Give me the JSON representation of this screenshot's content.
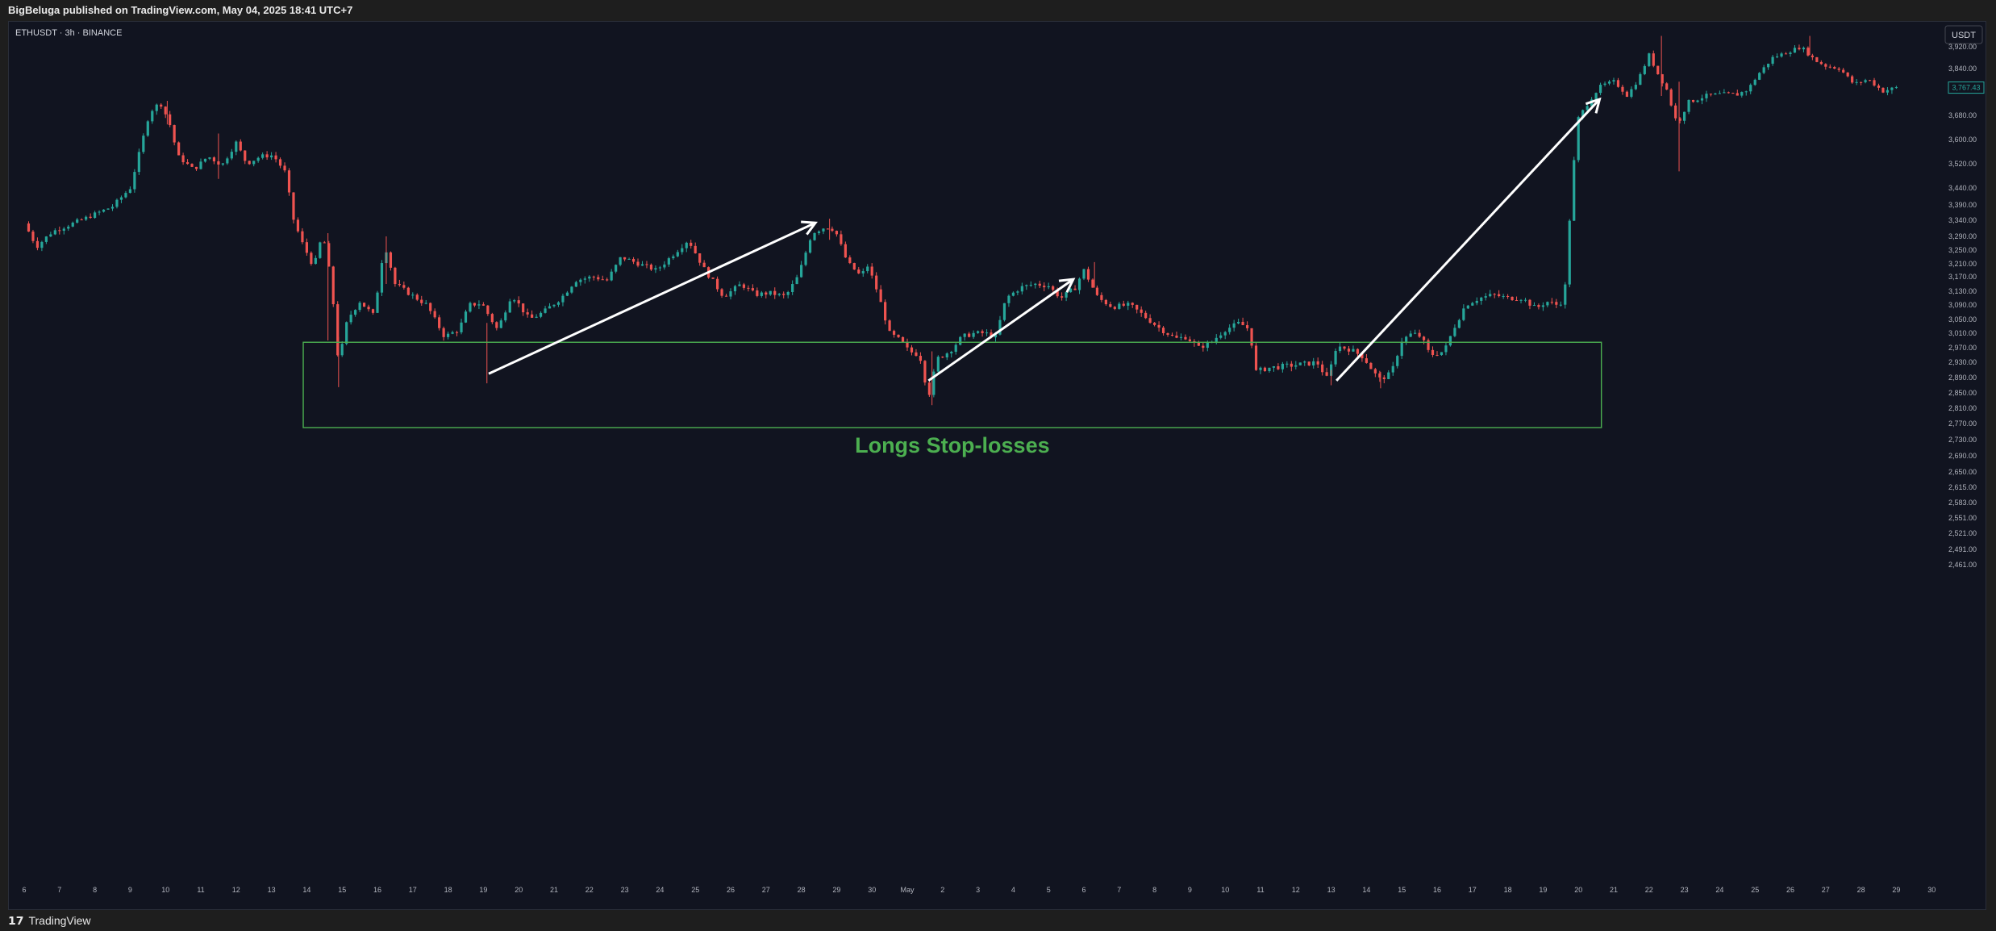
{
  "header": {
    "published_text": "BigBeluga published on TradingView.com, May 04, 2025 18:41 UTC+7"
  },
  "footer": {
    "logo_glyph": "𝟭𝟳",
    "brand": "TradingView"
  },
  "chart_data": {
    "type": "candlestick",
    "symbol_text": "ETHUSDT · 3h · BINANCE",
    "currency_badge": "USDT",
    "last_price": "3,767.43",
    "price_axis": [
      "3,920.00",
      "3,840.00",
      "3,760.00",
      "3,680.00",
      "3,600.00",
      "3,520.00",
      "3,440.00",
      "3,390.00",
      "3,340.00",
      "3,290.00",
      "3,250.00",
      "3,210.00",
      "3,170.00",
      "3,130.00",
      "3,090.00",
      "3,050.00",
      "3,010.00",
      "2,970.00",
      "2,930.00",
      "2,890.00",
      "2,850.00",
      "2,810.00",
      "2,770.00",
      "2,730.00",
      "2,690.00",
      "2,650.00",
      "2,615.00",
      "2,583.00",
      "2,551.00",
      "2,521.00",
      "2,491.00",
      "2,461.00"
    ],
    "time_axis": [
      "6",
      "7",
      "8",
      "9",
      "10",
      "11",
      "12",
      "13",
      "14",
      "15",
      "16",
      "17",
      "18",
      "19",
      "20",
      "21",
      "22",
      "23",
      "24",
      "25",
      "26",
      "27",
      "28",
      "29",
      "30",
      "May",
      "2",
      "3",
      "4",
      "5",
      "6",
      "7",
      "8",
      "9",
      "10",
      "11",
      "12",
      "13",
      "14",
      "15",
      "16",
      "17",
      "18",
      "19",
      "20",
      "21",
      "22",
      "23",
      "24",
      "25",
      "26",
      "27",
      "28",
      "29",
      "30"
    ],
    "annotation": "Longs Stop-losses",
    "zone": {
      "price_top": 2985,
      "price_bottom": 2760,
      "day_start": 7.9,
      "day_end": 44.65
    },
    "arrows": [
      {
        "from": [
          13.15,
          2900
        ],
        "to": [
          22.4,
          3332
        ]
      },
      {
        "from": [
          25.6,
          2882
        ],
        "to": [
          29.7,
          3163
        ]
      },
      {
        "from": [
          37.15,
          2882
        ],
        "to": [
          44.6,
          3730
        ]
      }
    ],
    "colors": {
      "up": "#26a69a",
      "down": "#ef5350",
      "zone": "#4caf50",
      "arrow": "#ffffff",
      "annotation": "#4caf50"
    },
    "keypoints": [
      [
        0,
        3330
      ],
      [
        0.35,
        3260
      ],
      [
        0.8,
        3305
      ],
      [
        1.6,
        3340
      ],
      [
        2.5,
        3385
      ],
      [
        3.0,
        3440
      ],
      [
        3.3,
        3575
      ],
      [
        3.55,
        3690
      ],
      [
        3.85,
        3720
      ],
      [
        4.1,
        3660
      ],
      [
        4.35,
        3545
      ],
      [
        4.8,
        3500
      ],
      [
        5.2,
        3545
      ],
      [
        5.6,
        3515
      ],
      [
        6.0,
        3590
      ],
      [
        6.3,
        3520
      ],
      [
        6.7,
        3545
      ],
      [
        7.05,
        3548
      ],
      [
        7.4,
        3490
      ],
      [
        7.6,
        3350
      ],
      [
        7.85,
        3275
      ],
      [
        8.2,
        3200
      ],
      [
        8.45,
        3300
      ],
      [
        8.7,
        3150
      ],
      [
        8.9,
        2925
      ],
      [
        9.15,
        3050
      ],
      [
        9.5,
        3100
      ],
      [
        9.9,
        3060
      ],
      [
        10.2,
        3270
      ],
      [
        10.5,
        3150
      ],
      [
        10.95,
        3120
      ],
      [
        11.4,
        3090
      ],
      [
        11.9,
        3000
      ],
      [
        12.3,
        3020
      ],
      [
        12.6,
        3090
      ],
      [
        12.95,
        3095
      ],
      [
        13.4,
        3020
      ],
      [
        13.8,
        3120
      ],
      [
        14.3,
        3050
      ],
      [
        14.7,
        3070
      ],
      [
        15.2,
        3110
      ],
      [
        15.6,
        3160
      ],
      [
        16.1,
        3170
      ],
      [
        16.5,
        3160
      ],
      [
        16.9,
        3230
      ],
      [
        17.4,
        3210
      ],
      [
        17.9,
        3190
      ],
      [
        18.4,
        3240
      ],
      [
        18.8,
        3280
      ],
      [
        19.3,
        3185
      ],
      [
        19.8,
        3115
      ],
      [
        20.3,
        3150
      ],
      [
        20.7,
        3120
      ],
      [
        21.1,
        3125
      ],
      [
        21.55,
        3115
      ],
      [
        21.9,
        3170
      ],
      [
        22.3,
        3300
      ],
      [
        22.7,
        3320
      ],
      [
        22.95,
        3310
      ],
      [
        23.3,
        3215
      ],
      [
        23.7,
        3170
      ],
      [
        23.85,
        3210
      ],
      [
        24.15,
        3130
      ],
      [
        24.5,
        3010
      ],
      [
        24.8,
        2990
      ],
      [
        25.05,
        2960
      ],
      [
        25.35,
        2950
      ],
      [
        25.6,
        2840
      ],
      [
        25.85,
        2940
      ],
      [
        26.2,
        2960
      ],
      [
        26.55,
        3000
      ],
      [
        26.9,
        3010
      ],
      [
        27.2,
        3010
      ],
      [
        27.5,
        3000
      ],
      [
        27.8,
        3110
      ],
      [
        28.2,
        3140
      ],
      [
        28.6,
        3150
      ],
      [
        29.0,
        3145
      ],
      [
        29.35,
        3110
      ],
      [
        29.75,
        3140
      ],
      [
        30.0,
        3190
      ],
      [
        30.4,
        3110
      ],
      [
        30.8,
        3085
      ],
      [
        31.3,
        3090
      ],
      [
        31.7,
        3060
      ],
      [
        32.2,
        3020
      ],
      [
        32.6,
        2995
      ],
      [
        32.9,
        3000
      ],
      [
        33.25,
        2970
      ],
      [
        33.6,
        2985
      ],
      [
        34.0,
        3020
      ],
      [
        34.4,
        3040
      ],
      [
        34.7,
        3020
      ],
      [
        34.85,
        2905
      ],
      [
        35.2,
        2915
      ],
      [
        35.7,
        2920
      ],
      [
        36.2,
        2925
      ],
      [
        36.6,
        2930
      ],
      [
        36.9,
        2885
      ],
      [
        37.15,
        2975
      ],
      [
        37.55,
        2965
      ],
      [
        37.9,
        2945
      ],
      [
        38.35,
        2885
      ],
      [
        38.7,
        2900
      ],
      [
        39.0,
        2990
      ],
      [
        39.3,
        3010
      ],
      [
        39.55,
        3000
      ],
      [
        39.8,
        2950
      ],
      [
        40.2,
        2960
      ],
      [
        40.5,
        3030
      ],
      [
        40.8,
        3090
      ],
      [
        41.2,
        3110
      ],
      [
        41.6,
        3120
      ],
      [
        42.0,
        3110
      ],
      [
        42.4,
        3110
      ],
      [
        42.8,
        3080
      ],
      [
        43.1,
        3100
      ],
      [
        43.4,
        3090
      ],
      [
        43.6,
        3105
      ],
      [
        43.85,
        3500
      ],
      [
        44.0,
        3670
      ],
      [
        44.3,
        3725
      ],
      [
        44.65,
        3775
      ],
      [
        45.0,
        3790
      ],
      [
        45.4,
        3740
      ],
      [
        45.7,
        3800
      ],
      [
        46.0,
        3890
      ],
      [
        46.25,
        3820
      ],
      [
        46.5,
        3760
      ],
      [
        46.8,
        3650
      ],
      [
        47.1,
        3720
      ],
      [
        47.6,
        3740
      ],
      [
        48.0,
        3745
      ],
      [
        48.5,
        3745
      ],
      [
        48.8,
        3760
      ],
      [
        49.1,
        3820
      ],
      [
        49.5,
        3880
      ],
      [
        49.9,
        3900
      ],
      [
        50.3,
        3920
      ],
      [
        50.7,
        3870
      ],
      [
        51.0,
        3850
      ],
      [
        51.4,
        3840
      ],
      [
        51.8,
        3780
      ],
      [
        52.2,
        3800
      ],
      [
        52.6,
        3755
      ],
      [
        53.0,
        3767
      ]
    ],
    "wicks": [
      [
        4.05,
        3725,
        3650
      ],
      [
        5.5,
        3620,
        3470
      ],
      [
        8.6,
        3300,
        2990
      ],
      [
        8.9,
        3000,
        2865
      ],
      [
        10.25,
        3290,
        3150
      ],
      [
        13.1,
        3040,
        2875
      ],
      [
        22.8,
        3345,
        3280
      ],
      [
        25.7,
        2960,
        2818
      ],
      [
        30.3,
        3215,
        3140
      ],
      [
        37.0,
        2910,
        2870
      ],
      [
        38.4,
        2905,
        2862
      ],
      [
        46.35,
        3960,
        3740
      ],
      [
        46.85,
        3790,
        3495
      ],
      [
        50.55,
        3960,
        3890
      ]
    ]
  }
}
